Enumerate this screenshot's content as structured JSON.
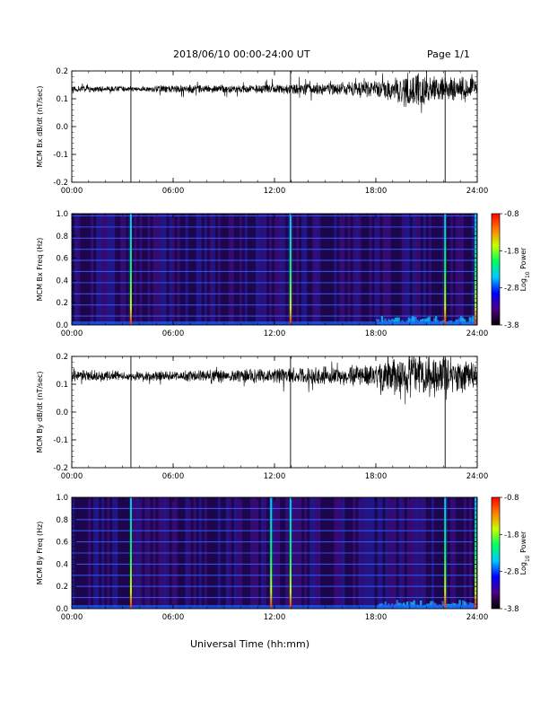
{
  "header": {
    "title": "2018/06/10  00:00-24:00 UT",
    "page": "Page 1/1"
  },
  "x_axis_label": "Universal Time (hh:mm)",
  "colorbar": {
    "ticks": [
      "-0.8",
      "-1.8",
      "-2.8",
      "-3.8"
    ],
    "label_base": "Log",
    "label_sub": "10",
    "label_rest": " Power"
  },
  "colors": {
    "trace": "#000000",
    "spec_background": "#2a0a66",
    "spec_band": "#3a5cff",
    "spec_line_high": "#ffc800",
    "colormap": [
      "#000000",
      "#4b0082",
      "#0000ff",
      "#00c8ff",
      "#00ff60",
      "#c8ff00",
      "#ff8000",
      "#ff0000"
    ]
  },
  "chart_data": [
    {
      "type": "line",
      "ylabel": "MCM Bx dB/dt (nT/sec)",
      "x_ticks": [
        "00:00",
        "06:00",
        "12:00",
        "18:00",
        "24:00"
      ],
      "y_ticks": [
        "0.2",
        "0.1",
        "0.0",
        "-0.1",
        "-0.2"
      ],
      "xlim": [
        0,
        24
      ],
      "ylim": [
        -0.2,
        0.2
      ],
      "baseline": 0.135,
      "noise_envelope": [
        {
          "t": 0,
          "amp": 0.012
        },
        {
          "t": 4,
          "amp": 0.008
        },
        {
          "t": 7,
          "amp": 0.015
        },
        {
          "t": 10,
          "amp": 0.013
        },
        {
          "t": 13,
          "amp": 0.02
        },
        {
          "t": 16,
          "amp": 0.02
        },
        {
          "t": 18,
          "amp": 0.03
        },
        {
          "t": 20,
          "amp": 0.06
        },
        {
          "t": 21.5,
          "amp": 0.045
        },
        {
          "t": 24,
          "amp": 0.04
        }
      ],
      "spikes": [
        {
          "t": 3.5,
          "min": -0.2
        },
        {
          "t": 12.95,
          "min": -0.2
        },
        {
          "t": 22.1,
          "min": -0.2
        }
      ]
    },
    {
      "type": "heatmap",
      "ylabel": "MCM Bx Freq (Hz)",
      "x_ticks": [
        "00:00",
        "06:00",
        "12:00",
        "18:00",
        "24:00"
      ],
      "y_ticks": [
        "1.0",
        "0.8",
        "0.6",
        "0.4",
        "0.2",
        "0.0"
      ],
      "xlim": [
        0,
        24
      ],
      "ylim": [
        0,
        1.0
      ],
      "harmonic_lines_hz": [
        0.08,
        0.18,
        0.28,
        0.38,
        0.48,
        0.58,
        0.68,
        0.78,
        0.88,
        0.98
      ],
      "impulse_times": [
        3.5,
        12.95,
        22.1,
        23.9
      ],
      "low_freq_enhancement": {
        "from": 18,
        "to": 24
      }
    },
    {
      "type": "line",
      "ylabel": "MCM By dB/dt (nT/sec)",
      "x_ticks": [
        "00:00",
        "06:00",
        "12:00",
        "18:00",
        "24:00"
      ],
      "y_ticks": [
        "0.2",
        "0.1",
        "0.0",
        "-0.1",
        "-0.2"
      ],
      "xlim": [
        0,
        24
      ],
      "ylim": [
        -0.2,
        0.2
      ],
      "baseline": 0.13,
      "noise_envelope": [
        {
          "t": 0,
          "amp": 0.02
        },
        {
          "t": 4,
          "amp": 0.015
        },
        {
          "t": 8,
          "amp": 0.02
        },
        {
          "t": 12,
          "amp": 0.025
        },
        {
          "t": 15,
          "amp": 0.03
        },
        {
          "t": 18,
          "amp": 0.04
        },
        {
          "t": 19.5,
          "amp": 0.08
        },
        {
          "t": 21,
          "amp": 0.07
        },
        {
          "t": 24,
          "amp": 0.05
        }
      ],
      "spikes": [
        {
          "t": 3.5,
          "min": -0.2
        },
        {
          "t": 12.95,
          "min": -0.2
        },
        {
          "t": 22.1,
          "min": -0.2
        }
      ]
    },
    {
      "type": "heatmap",
      "ylabel": "MCM By Freq (Hz)",
      "x_ticks": [
        "00:00",
        "06:00",
        "12:00",
        "18:00",
        "24:00"
      ],
      "y_ticks": [
        "1.0",
        "0.8",
        "0.6",
        "0.4",
        "0.2",
        "0.0"
      ],
      "xlim": [
        0,
        24
      ],
      "ylim": [
        0,
        1.0
      ],
      "harmonic_lines_hz": [
        0.1,
        0.2,
        0.3,
        0.4,
        0.5,
        0.6,
        0.7,
        0.8,
        0.9
      ],
      "impulse_times": [
        3.5,
        11.8,
        12.95,
        22.1,
        23.9
      ],
      "low_freq_enhancement": {
        "from": 18,
        "to": 24
      }
    }
  ]
}
